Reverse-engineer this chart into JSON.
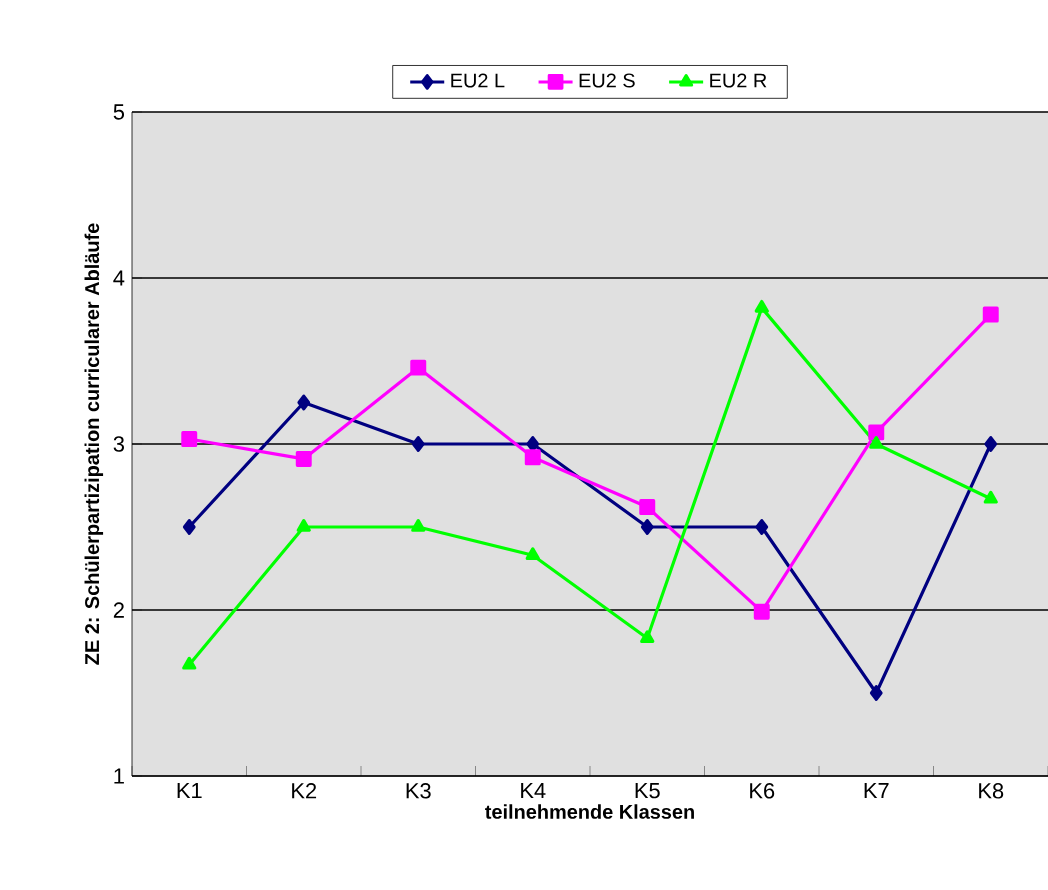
{
  "chart_data": {
    "type": "line",
    "xlabel": "teilnehmende Klassen",
    "ylabel": "ZE 2: Schülerpartizipation curricularer Abläufe",
    "categories": [
      "K1",
      "K2",
      "K3",
      "K4",
      "K5",
      "K6",
      "K7",
      "K8"
    ],
    "series": [
      {
        "name": "EU2 L",
        "color": "#000080",
        "marker": "diamond",
        "values": [
          2.5,
          3.25,
          3.0,
          3.0,
          2.5,
          2.5,
          1.5,
          3.0
        ]
      },
      {
        "name": "EU2 S",
        "color": "#ff00ff",
        "marker": "square",
        "values": [
          3.03,
          2.91,
          3.46,
          2.92,
          2.62,
          1.99,
          3.07,
          3.78
        ]
      },
      {
        "name": "EU2 R",
        "color": "#00ff00",
        "marker": "triangle",
        "values": [
          1.67,
          2.5,
          2.5,
          2.33,
          1.83,
          3.82,
          3.0,
          2.67
        ]
      }
    ],
    "ylim": [
      1,
      5
    ],
    "yticks": [
      1,
      2,
      3,
      4,
      5
    ],
    "grid": "y",
    "legend": "top",
    "line_style": "solid"
  }
}
